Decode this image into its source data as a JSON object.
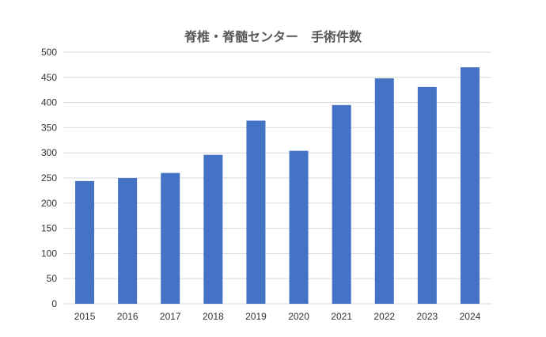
{
  "chart_data": {
    "type": "bar",
    "title": "脊椎・脊髄センター　手術件数",
    "xlabel": "",
    "ylabel": "",
    "categories": [
      "2015",
      "2016",
      "2017",
      "2018",
      "2019",
      "2020",
      "2021",
      "2022",
      "2023",
      "2024"
    ],
    "values": [
      244,
      250,
      260,
      296,
      364,
      304,
      395,
      448,
      431,
      470
    ],
    "ylim": [
      0,
      500
    ],
    "yticks": [
      0,
      50,
      100,
      150,
      200,
      250,
      300,
      350,
      400,
      450,
      500
    ],
    "grid": true,
    "legend": "none",
    "bar_color": "#4472C4",
    "grid_color": "#d9d9d9"
  }
}
